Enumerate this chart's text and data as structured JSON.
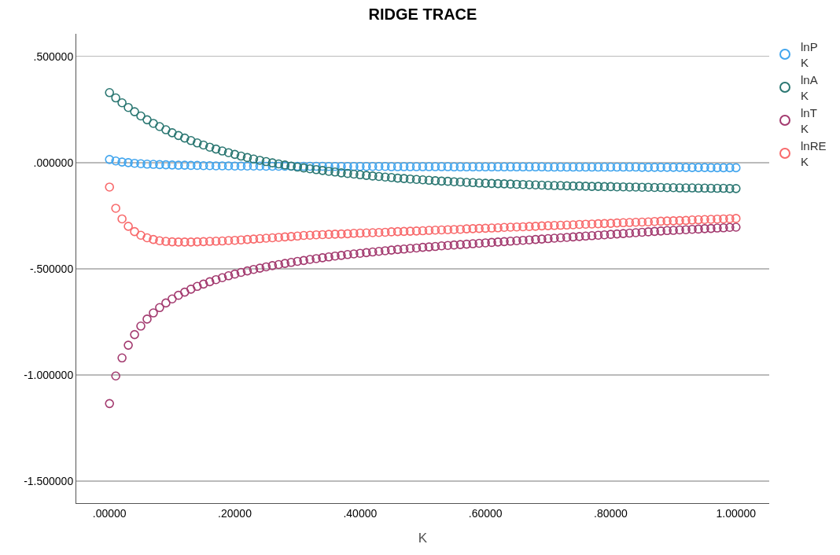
{
  "chart_data": {
    "type": "scatter",
    "title": "RIDGE TRACE",
    "xlabel": "K",
    "x": [
      0,
      0.01,
      0.02,
      0.03,
      0.04,
      0.05,
      0.06,
      0.07,
      0.08,
      0.09,
      0.1,
      0.11,
      0.12,
      0.13,
      0.14,
      0.15,
      0.16,
      0.17,
      0.18,
      0.19,
      0.2,
      0.21,
      0.22,
      0.23,
      0.24,
      0.25,
      0.26,
      0.27,
      0.28,
      0.29,
      0.3,
      0.31,
      0.32,
      0.33,
      0.34,
      0.35,
      0.36,
      0.37,
      0.38,
      0.39,
      0.4,
      0.41,
      0.42,
      0.43,
      0.44,
      0.45,
      0.46,
      0.47,
      0.48,
      0.49,
      0.5,
      0.51,
      0.52,
      0.53,
      0.54,
      0.55,
      0.56,
      0.57,
      0.58,
      0.59,
      0.6,
      0.61,
      0.62,
      0.63,
      0.64,
      0.65,
      0.66,
      0.67,
      0.68,
      0.69,
      0.7,
      0.71,
      0.72,
      0.73,
      0.74,
      0.75,
      0.76,
      0.77,
      0.78,
      0.79,
      0.8,
      0.81,
      0.82,
      0.83,
      0.84,
      0.85,
      0.86,
      0.87,
      0.88,
      0.89,
      0.9,
      0.91,
      0.92,
      0.93,
      0.94,
      0.95,
      0.96,
      0.97,
      0.98,
      0.99,
      1.0
    ],
    "series": [
      {
        "name": "lnP\nK",
        "color": "#41a5ee",
        "values": [
          0.015,
          0.008,
          0.003,
          0.0,
          -0.003,
          -0.005,
          -0.007,
          -0.008,
          -0.009,
          -0.01,
          -0.011,
          -0.012,
          -0.012,
          -0.013,
          -0.013,
          -0.014,
          -0.014,
          -0.015,
          -0.015,
          -0.015,
          -0.016,
          -0.016,
          -0.016,
          -0.016,
          -0.016,
          -0.017,
          -0.017,
          -0.017,
          -0.017,
          -0.017,
          -0.017,
          -0.017,
          -0.017,
          -0.017,
          -0.017,
          -0.018,
          -0.018,
          -0.018,
          -0.018,
          -0.018,
          -0.018,
          -0.018,
          -0.018,
          -0.018,
          -0.018,
          -0.019,
          -0.019,
          -0.019,
          -0.019,
          -0.019,
          -0.019,
          -0.019,
          -0.019,
          -0.019,
          -0.019,
          -0.02,
          -0.02,
          -0.02,
          -0.02,
          -0.02,
          -0.02,
          -0.02,
          -0.02,
          -0.02,
          -0.02,
          -0.02,
          -0.02,
          -0.02,
          -0.02,
          -0.02,
          -0.021,
          -0.021,
          -0.021,
          -0.021,
          -0.021,
          -0.021,
          -0.021,
          -0.021,
          -0.021,
          -0.021,
          -0.021,
          -0.021,
          -0.021,
          -0.021,
          -0.021,
          -0.022,
          -0.022,
          -0.022,
          -0.022,
          -0.022,
          -0.022,
          -0.022,
          -0.023,
          -0.023,
          -0.023,
          -0.023,
          -0.024,
          -0.024,
          -0.024,
          -0.024,
          -0.024
        ]
      },
      {
        "name": "lnA\nK",
        "color": "#2b7772",
        "values": [
          0.33,
          0.305,
          0.282,
          0.26,
          0.24,
          0.22,
          0.202,
          0.185,
          0.17,
          0.155,
          0.141,
          0.128,
          0.116,
          0.104,
          0.093,
          0.083,
          0.073,
          0.064,
          0.055,
          0.047,
          0.039,
          0.031,
          0.024,
          0.017,
          0.011,
          0.005,
          -0.001,
          -0.006,
          -0.011,
          -0.016,
          -0.021,
          -0.025,
          -0.029,
          -0.033,
          -0.037,
          -0.041,
          -0.044,
          -0.048,
          -0.051,
          -0.054,
          -0.057,
          -0.06,
          -0.063,
          -0.065,
          -0.068,
          -0.07,
          -0.073,
          -0.075,
          -0.077,
          -0.079,
          -0.081,
          -0.083,
          -0.085,
          -0.087,
          -0.088,
          -0.09,
          -0.091,
          -0.093,
          -0.094,
          -0.096,
          -0.097,
          -0.098,
          -0.099,
          -0.1,
          -0.101,
          -0.102,
          -0.103,
          -0.104,
          -0.105,
          -0.106,
          -0.107,
          -0.108,
          -0.108,
          -0.109,
          -0.11,
          -0.11,
          -0.111,
          -0.112,
          -0.112,
          -0.113,
          -0.113,
          -0.114,
          -0.114,
          -0.115,
          -0.115,
          -0.116,
          -0.116,
          -0.117,
          -0.117,
          -0.118,
          -0.118,
          -0.119,
          -0.119,
          -0.119,
          -0.12,
          -0.12,
          -0.121,
          -0.121,
          -0.121,
          -0.122,
          -0.122
        ]
      },
      {
        "name": "lnT\nK",
        "color": "#a33a6f",
        "values": [
          -1.135,
          -1.005,
          -0.92,
          -0.86,
          -0.81,
          -0.77,
          -0.737,
          -0.708,
          -0.683,
          -0.661,
          -0.642,
          -0.625,
          -0.61,
          -0.596,
          -0.583,
          -0.572,
          -0.561,
          -0.551,
          -0.542,
          -0.533,
          -0.525,
          -0.517,
          -0.51,
          -0.503,
          -0.497,
          -0.491,
          -0.485,
          -0.48,
          -0.475,
          -0.47,
          -0.465,
          -0.461,
          -0.456,
          -0.452,
          -0.448,
          -0.444,
          -0.44,
          -0.437,
          -0.433,
          -0.43,
          -0.427,
          -0.424,
          -0.421,
          -0.418,
          -0.415,
          -0.412,
          -0.409,
          -0.407,
          -0.404,
          -0.402,
          -0.399,
          -0.397,
          -0.395,
          -0.392,
          -0.39,
          -0.388,
          -0.386,
          -0.384,
          -0.382,
          -0.38,
          -0.378,
          -0.376,
          -0.374,
          -0.372,
          -0.37,
          -0.368,
          -0.366,
          -0.364,
          -0.362,
          -0.36,
          -0.358,
          -0.356,
          -0.354,
          -0.352,
          -0.35,
          -0.348,
          -0.346,
          -0.344,
          -0.342,
          -0.34,
          -0.338,
          -0.336,
          -0.334,
          -0.332,
          -0.33,
          -0.328,
          -0.326,
          -0.324,
          -0.322,
          -0.32,
          -0.319,
          -0.317,
          -0.316,
          -0.314,
          -0.313,
          -0.311,
          -0.31,
          -0.308,
          -0.307,
          -0.305,
          -0.304
        ]
      },
      {
        "name": "lnRE\nK",
        "color": "#f8696b",
        "values": [
          -0.115,
          -0.215,
          -0.265,
          -0.3,
          -0.325,
          -0.342,
          -0.354,
          -0.362,
          -0.368,
          -0.371,
          -0.373,
          -0.374,
          -0.374,
          -0.374,
          -0.373,
          -0.372,
          -0.371,
          -0.37,
          -0.369,
          -0.367,
          -0.366,
          -0.364,
          -0.362,
          -0.36,
          -0.358,
          -0.356,
          -0.354,
          -0.352,
          -0.35,
          -0.348,
          -0.346,
          -0.343,
          -0.342,
          -0.34,
          -0.339,
          -0.338,
          -0.337,
          -0.336,
          -0.335,
          -0.333,
          -0.332,
          -0.331,
          -0.33,
          -0.329,
          -0.328,
          -0.326,
          -0.325,
          -0.324,
          -0.323,
          -0.322,
          -0.321,
          -0.319,
          -0.318,
          -0.317,
          -0.316,
          -0.315,
          -0.314,
          -0.312,
          -0.311,
          -0.31,
          -0.309,
          -0.308,
          -0.307,
          -0.305,
          -0.304,
          -0.303,
          -0.302,
          -0.301,
          -0.3,
          -0.298,
          -0.297,
          -0.296,
          -0.295,
          -0.294,
          -0.293,
          -0.291,
          -0.29,
          -0.289,
          -0.288,
          -0.287,
          -0.286,
          -0.284,
          -0.283,
          -0.282,
          -0.281,
          -0.28,
          -0.279,
          -0.277,
          -0.276,
          -0.275,
          -0.274,
          -0.273,
          -0.272,
          -0.27,
          -0.269,
          -0.268,
          -0.267,
          -0.266,
          -0.265,
          -0.264,
          -0.263
        ]
      }
    ],
    "xlim": [
      -0.053,
      1.053
    ],
    "xticks": [
      {
        "value": 0,
        "label": ".00000"
      },
      {
        "value": 0.2,
        "label": ".20000"
      },
      {
        "value": 0.4,
        "label": ".40000"
      },
      {
        "value": 0.6,
        "label": ".60000"
      },
      {
        "value": 0.8,
        "label": ".80000"
      },
      {
        "value": 1,
        "label": "1.00000"
      }
    ],
    "ylim": [
      -1.604,
      0.607
    ],
    "yticks": [
      {
        "value": -1.5,
        "label": "-1.500000"
      },
      {
        "value": -1,
        "label": "-1.000000"
      },
      {
        "value": -0.5,
        "label": "-.500000"
      },
      {
        "value": 0,
        "label": ".000000"
      },
      {
        "value": 0.5,
        "label": ".500000"
      }
    ],
    "grid": "y",
    "legend": "top right",
    "marker": "circle"
  }
}
